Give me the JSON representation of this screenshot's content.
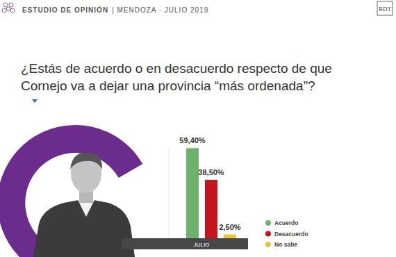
{
  "chart_data": {
    "type": "bar",
    "title": "¿Estás de acuerdo o en desacuerdo respecto de que Cornejo va a dejar una provincia “más ordenada”?",
    "annotations": [
      "ESTUDIO DE OPINIÓN",
      "| MENDOZA · JULIO 2019",
      "RDT"
    ],
    "categories": [
      "JULIO"
    ],
    "series": [
      {
        "name": "Acuerdo",
        "color": "#6db36b",
        "values": [
          59.4
        ],
        "value_labels": [
          "59,40%"
        ]
      },
      {
        "name": "Desacuerdo",
        "color": "#c3161c",
        "values": [
          38.5
        ],
        "value_labels": [
          "38,50%"
        ]
      },
      {
        "name": "No sabe",
        "color": "#e9c440",
        "values": [
          2.5
        ],
        "value_labels": [
          "2,50%"
        ]
      }
    ],
    "ylim": [
      0,
      60
    ],
    "data_labels": true,
    "tick_labels": "x",
    "legend": "right"
  }
}
